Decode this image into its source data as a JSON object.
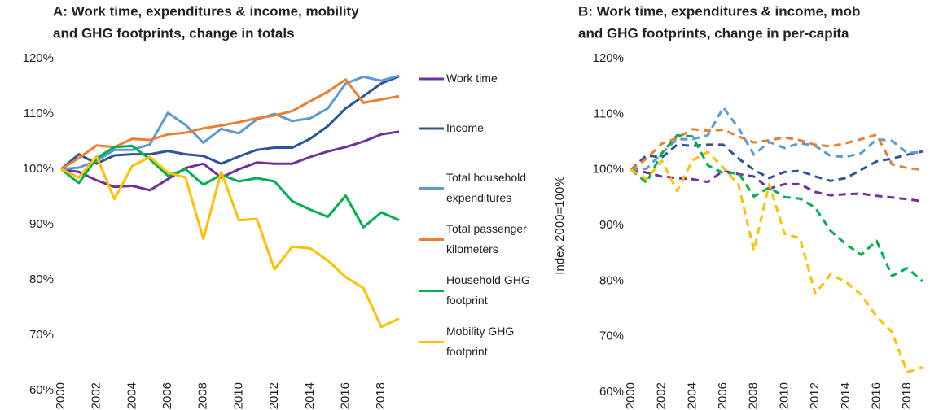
{
  "chart_data": [
    {
      "type": "line",
      "title": [
        "A: Work time, expenditures & income, mobility",
        "and GHG footprints, change in totals"
      ],
      "x": [
        2000,
        2001,
        2002,
        2003,
        2004,
        2005,
        2006,
        2007,
        2008,
        2009,
        2010,
        2011,
        2012,
        2013,
        2014,
        2015,
        2016,
        2017,
        2018,
        2019
      ],
      "xlim": [
        2000,
        2019
      ],
      "xticks": [
        2000,
        2002,
        2004,
        2006,
        2008,
        2010,
        2012,
        2014,
        2016,
        2018
      ],
      "ylim": [
        60,
        120
      ],
      "yticks": [
        {
          "value": 60,
          "label": "60%"
        },
        {
          "value": 70,
          "label": "70%"
        },
        {
          "value": 80,
          "label": "80%"
        },
        {
          "value": 90,
          "label": "90%"
        },
        {
          "value": 100,
          "label": "100%"
        },
        {
          "value": 110,
          "label": "110%"
        },
        {
          "value": 120,
          "label": "120%"
        }
      ],
      "grid": false,
      "legend": "right",
      "series": [
        {
          "name": "Work time",
          "color": "#7030a0",
          "values": [
            100,
            99.5,
            98,
            96.8,
            97,
            96.2,
            98.2,
            100.2,
            101,
            98.5,
            100,
            101.2,
            101,
            101,
            102.2,
            103.2,
            104,
            105,
            106.3,
            106.8
          ]
        },
        {
          "name": "Income",
          "color": "#2f5597",
          "values": [
            100,
            102.7,
            101,
            102.5,
            102.7,
            102.7,
            103.3,
            102.7,
            102.4,
            101,
            102.3,
            103.5,
            103.9,
            103.9,
            105.5,
            107.8,
            111,
            113.2,
            115.5,
            116.8
          ]
        },
        {
          "name": "Total household expenditures",
          "color": "#5b9bd5",
          "values": [
            100,
            100.3,
            101.5,
            103.5,
            103.5,
            104.5,
            110.2,
            108,
            104.8,
            107.3,
            106.5,
            109,
            110,
            108.7,
            109.2,
            111,
            115.5,
            116.7,
            116,
            116.9
          ]
        },
        {
          "name": "Total passenger kilometers",
          "color": "#ed7d31",
          "values": [
            100,
            102,
            104.3,
            104,
            105.5,
            105.3,
            106.3,
            106.6,
            107.4,
            107.9,
            108.5,
            109.2,
            109.7,
            110.5,
            112.3,
            114,
            116.2,
            112,
            112.6,
            113.2
          ]
        },
        {
          "name": "Household GHG footprint",
          "color": "#00b050",
          "values": [
            100,
            97.5,
            102,
            104,
            104.2,
            101.8,
            98.8,
            100,
            97.2,
            99,
            97.8,
            98.4,
            97.8,
            94.2,
            92.7,
            91.4,
            95.2,
            89.5,
            92.2,
            90.8
          ]
        },
        {
          "name": "Mobility GHG footprint",
          "color": "#ffc000",
          "values": [
            100,
            98.5,
            102.3,
            94.6,
            100.6,
            102.2,
            99.4,
            98.5,
            87.4,
            99.5,
            90.8,
            91,
            81.9,
            86,
            85.7,
            83.5,
            80.5,
            78.5,
            71.5,
            73
          ]
        }
      ]
    },
    {
      "type": "line",
      "title": [
        "B: Work time, expenditures & income, mob",
        "and GHG footprints, change in per-capita"
      ],
      "y_label": "Index 2000=100%",
      "x": [
        2000,
        2001,
        2002,
        2003,
        2004,
        2005,
        2006,
        2007,
        2008,
        2009,
        2010,
        2011,
        2012,
        2013,
        2014,
        2015,
        2016,
        2017,
        2018,
        2019
      ],
      "xlim": [
        2000,
        2019
      ],
      "xticks": [
        2000,
        2002,
        2004,
        2006,
        2008,
        2010,
        2012,
        2014,
        2016,
        2018
      ],
      "ylim": [
        60,
        120
      ],
      "yticks": [
        {
          "value": 60,
          "label": "60%"
        },
        {
          "value": 70,
          "label": "70%"
        },
        {
          "value": 80,
          "label": "80%"
        },
        {
          "value": 90,
          "label": "90%"
        },
        {
          "value": 100,
          "label": "100%"
        },
        {
          "value": 110,
          "label": "110%"
        },
        {
          "value": 120,
          "label": "120%"
        }
      ],
      "grid": false,
      "dashed": true,
      "series": [
        {
          "color": "#7030a0",
          "values": [
            100,
            99.5,
            98.8,
            98.5,
            98.3,
            97.8,
            99.8,
            99.2,
            98.8,
            96.6,
            97.4,
            97.4,
            96,
            95.4,
            95.6,
            95.7,
            95.3,
            95,
            94.7,
            94.3
          ]
        },
        {
          "color": "#2f5597",
          "values": [
            100,
            102.6,
            102.2,
            104.5,
            104.3,
            104.5,
            104.5,
            102,
            100,
            98.5,
            99.6,
            99.8,
            98.8,
            98,
            98.5,
            100,
            101.5,
            102,
            102.7,
            103.3
          ]
        },
        {
          "color": "#5b9bd5",
          "values": [
            100,
            100.2,
            103,
            105.5,
            105.5,
            106.2,
            111.2,
            107.5,
            102.7,
            105,
            103.9,
            104.8,
            104.3,
            102.5,
            102.3,
            103,
            105.5,
            105.2,
            103,
            103.2
          ]
        },
        {
          "color": "#ed7d31",
          "values": [
            100,
            102,
            104.7,
            105.7,
            107.3,
            107,
            107.2,
            106,
            104.9,
            105.3,
            105.8,
            105.3,
            104.5,
            104.2,
            104.8,
            105.5,
            106.3,
            101,
            100.3,
            100
          ]
        },
        {
          "color": "#00b050",
          "values": [
            100,
            97.7,
            103,
            106.2,
            106,
            100.8,
            99.4,
            99.4,
            95.2,
            96.8,
            95.1,
            94.8,
            93.2,
            89,
            86.6,
            84.7,
            87.2,
            80.9,
            82.3,
            79.9
          ]
        },
        {
          "color": "#ffc000",
          "values": [
            100,
            98.3,
            101.6,
            96.2,
            101.7,
            103.2,
            100.4,
            97.3,
            85.5,
            97.4,
            88.5,
            87.7,
            77.7,
            81.2,
            79.8,
            77.5,
            73.6,
            70.8,
            63.6,
            64.5
          ]
        }
      ]
    }
  ]
}
